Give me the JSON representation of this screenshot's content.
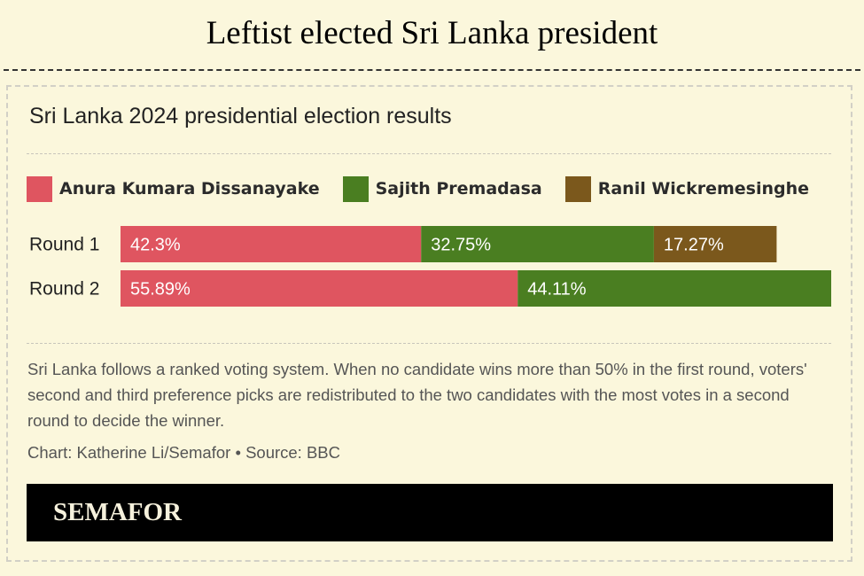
{
  "headline": "Leftist elected Sri Lanka president",
  "chart_data": {
    "type": "bar",
    "orientation": "horizontal-stacked",
    "title": "Sri Lanka 2024 presidential election results",
    "categories": [
      "Round 1",
      "Round 2"
    ],
    "series": [
      {
        "name": "Anura Kumara Dissanayake",
        "color": "#df5560",
        "values": [
          42.3,
          55.89
        ],
        "labels": [
          "42.3%",
          "55.89%"
        ]
      },
      {
        "name": "Sajith Premadasa",
        "color": "#4a7e21",
        "values": [
          32.75,
          44.11
        ],
        "labels": [
          "32.75%",
          "44.11%"
        ]
      },
      {
        "name": "Ranil Wickremesinghe",
        "color": "#7b581c",
        "values": [
          17.27,
          null
        ],
        "labels": [
          "17.27%",
          null
        ]
      }
    ],
    "xlim": [
      0,
      100
    ],
    "unit": "%"
  },
  "note": "Sri Lanka follows a ranked voting system. When no candidate wins more than 50% in the first round, voters' second and third preference picks are redistributed to the two candidates with the most votes in a second round to decide the winner.",
  "credit": "Chart: Katherine Li/Semafor • Source: BBC",
  "brand": "SEMAFOR"
}
